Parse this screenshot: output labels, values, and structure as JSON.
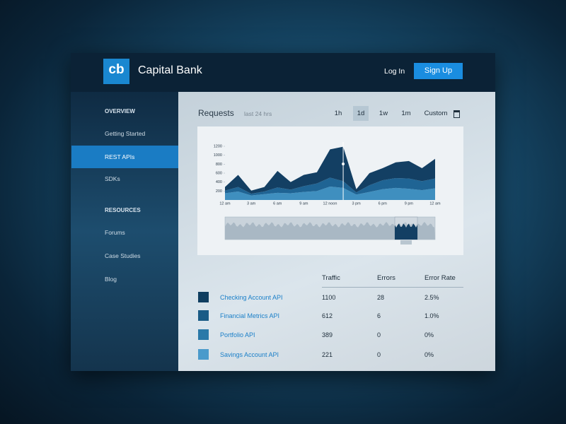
{
  "header": {
    "logo": "cb",
    "brand": "Capital Bank",
    "login": "Log In",
    "signup": "Sign Up"
  },
  "sidebar": {
    "sections": [
      {
        "title": "OVERVIEW",
        "items": [
          "Getting Started",
          "REST APIs",
          "SDKs"
        ]
      },
      {
        "title": "RESOURCES",
        "items": [
          "Forums",
          "Case Studies",
          "Blog"
        ]
      }
    ],
    "active": "REST APIs"
  },
  "requests": {
    "title": "Requests",
    "subtitle": "last 24 hrs",
    "ranges": [
      "1h",
      "1d",
      "1w",
      "1m",
      "Custom"
    ],
    "active_range": "1d"
  },
  "chart_data": {
    "type": "stacked-area",
    "categories": [
      "12 am",
      null,
      "3 am",
      null,
      "6 am",
      null,
      "9 am",
      null,
      "12 noon",
      null,
      "3 pm",
      null,
      "6 pm",
      null,
      "9 pm",
      null,
      "12 am"
    ],
    "series": [
      {
        "color": "#3f8fbf",
        "values": [
          150,
          190,
          100,
          130,
          160,
          150,
          180,
          200,
          300,
          270,
          120,
          180,
          240,
          270,
          250,
          220,
          260
        ]
      },
      {
        "color": "#1f6494",
        "values": [
          60,
          100,
          40,
          60,
          120,
          80,
          130,
          170,
          200,
          150,
          50,
          150,
          200,
          220,
          230,
          200,
          220
        ]
      },
      {
        "color": "#133f63",
        "values": [
          80,
          270,
          70,
          100,
          370,
          170,
          250,
          250,
          630,
          770,
          70,
          270,
          270,
          350,
          390,
          290,
          440
        ]
      }
    ],
    "ylim": [
      0,
      1200
    ],
    "yticks": [
      200,
      400,
      600,
      800,
      1000,
      1200
    ]
  },
  "table": {
    "columns": [
      "Traffic",
      "Errors",
      "Error Rate"
    ],
    "rows": [
      {
        "color": "#0f3e60",
        "name": "Checking Account API",
        "traffic": "1100",
        "errors": "28",
        "rate": "2.5%"
      },
      {
        "color": "#1a5b86",
        "name": "Financial Metrics API",
        "traffic": "612",
        "errors": "6",
        "rate": "1.0%"
      },
      {
        "color": "#2a79a8",
        "name": "Portfolio API",
        "traffic": "389",
        "errors": "0",
        "rate": "0%"
      },
      {
        "color": "#4a9acb",
        "name": "Savings Account API",
        "traffic": "221",
        "errors": "0",
        "rate": "0%"
      }
    ]
  }
}
